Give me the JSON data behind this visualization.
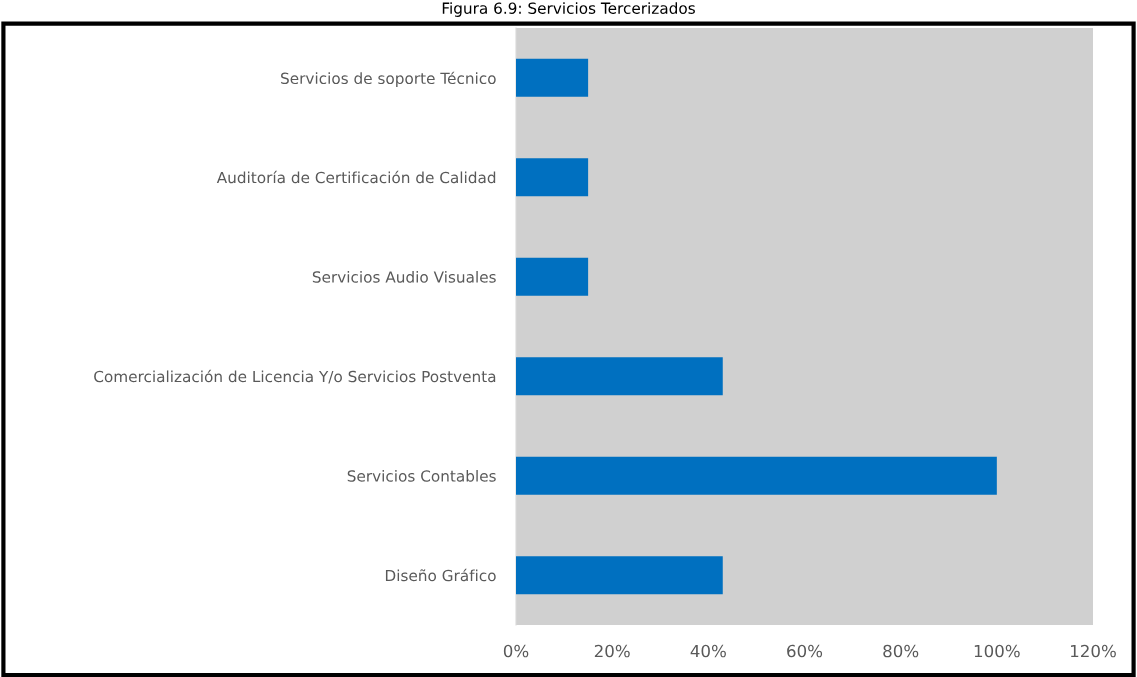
{
  "chart_data": {
    "type": "bar",
    "orientation": "horizontal",
    "title": "Figura 6.9: Servicios Tercerizados",
    "categories": [
      "Servicios de soporte Técnico",
      "Auditoría de Certificación de Calidad",
      "Servicios Audio Visuales",
      "Comercialización de Licencia Y/o Servicios Postventa",
      "Servicios Contables",
      "Diseño Gráfico"
    ],
    "values": [
      15,
      15,
      15,
      43,
      100,
      43
    ],
    "color": "#0070c0",
    "xlim": [
      0,
      120
    ],
    "xticks": [
      {
        "value": 0,
        "label": "0%"
      },
      {
        "value": 20,
        "label": "20%"
      },
      {
        "value": 40,
        "label": "40%"
      },
      {
        "value": 60,
        "label": "60%"
      },
      {
        "value": 80,
        "label": "80%"
      },
      {
        "value": 100,
        "label": "100%"
      },
      {
        "value": 120,
        "label": "120%"
      }
    ],
    "grid": false
  }
}
